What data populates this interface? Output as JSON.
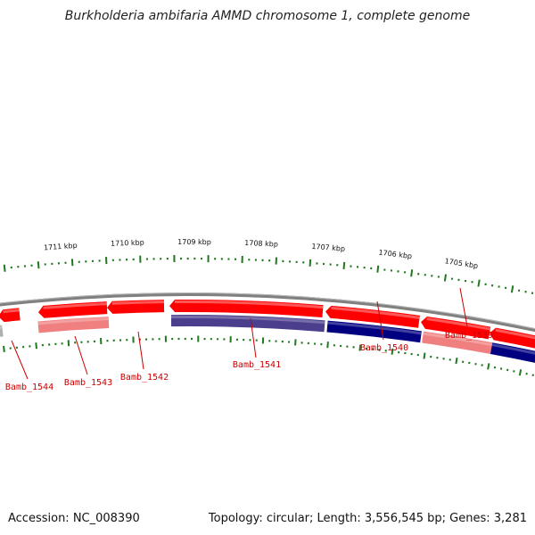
{
  "title": "Burkholderia ambifaria AMMD chromosome 1, complete genome",
  "footer": {
    "accession": "Accession: NC_008390",
    "summary": "Topology: circular; Length: 3,556,545 bp; Genes: 3,281"
  },
  "colors": {
    "backbone": "#808080",
    "tick": "#1f7a1f",
    "label": "#cc0000",
    "gene_red": "#ff0000",
    "gene_pink": "#f08080",
    "gene_navy": "#000080",
    "gene_purple": "#4b3e8c",
    "gene_gray": "#b0b0b0"
  },
  "ruler": {
    "tick_labels": [
      "1711 kbp",
      "1710 kbp",
      "1709 kbp",
      "1708 kbp",
      "1707 kbp",
      "1706 kbp",
      "1705 kbp"
    ]
  },
  "genes": [
    {
      "label": "Bamb_1544"
    },
    {
      "label": "Bamb_1543"
    },
    {
      "label": "Bamb_1542"
    },
    {
      "label": "Bamb_1541"
    },
    {
      "label": "Bamb_1540"
    },
    {
      "label": "Bamb_1539"
    }
  ]
}
